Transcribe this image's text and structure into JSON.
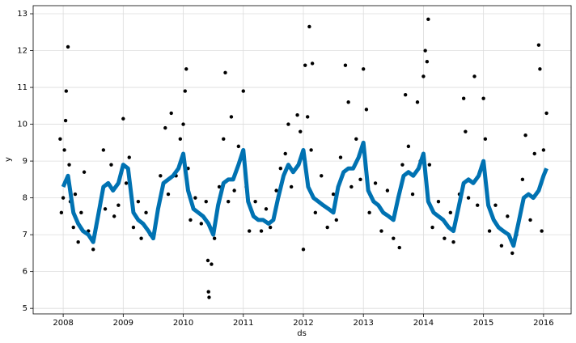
{
  "chart_data": {
    "type": "line",
    "x_label": "ds",
    "y_label": "y",
    "xlim": [
      2007.5,
      2016.46
    ],
    "ylim": [
      4.85,
      13.22
    ],
    "xticks": [
      2008,
      2009,
      2010,
      2011,
      2012,
      2013,
      2014,
      2015,
      2016
    ],
    "yticks": [
      5,
      6,
      7,
      8,
      9,
      10,
      11,
      12,
      13
    ],
    "grid": true,
    "series": [
      {
        "type": "scatter",
        "color": "#000000",
        "x": [
          2007.95,
          2007.97,
          2008.0,
          2008.02,
          2008.04,
          2008.05,
          2008.08,
          2008.1,
          2008.12,
          2008.17,
          2008.2,
          2008.25,
          2008.3,
          2008.35,
          2008.42,
          2008.5,
          2008.55,
          2008.62,
          2008.67,
          2008.7,
          2008.8,
          2008.85,
          2008.92,
          2009.0,
          2009.05,
          2009.1,
          2009.17,
          2009.25,
          2009.3,
          2009.38,
          2009.45,
          2009.55,
          2009.62,
          2009.7,
          2009.75,
          2009.8,
          2009.88,
          2009.95,
          2010.0,
          2010.03,
          2010.05,
          2010.08,
          2010.12,
          2010.2,
          2010.3,
          2010.38,
          2010.41,
          2010.42,
          2010.43,
          2010.47,
          2010.52,
          2010.6,
          2010.67,
          2010.7,
          2010.75,
          2010.8,
          2010.85,
          2010.92,
          2011.0,
          2011.05,
          2011.1,
          2011.2,
          2011.3,
          2011.38,
          2011.45,
          2011.55,
          2011.62,
          2011.7,
          2011.75,
          2011.8,
          2011.9,
          2011.95,
          2012.0,
          2012.03,
          2012.07,
          2012.1,
          2012.13,
          2012.15,
          2012.2,
          2012.3,
          2012.4,
          2012.5,
          2012.55,
          2012.62,
          2012.7,
          2012.75,
          2012.8,
          2012.88,
          2012.95,
          2013.0,
          2013.05,
          2013.1,
          2013.2,
          2013.3,
          2013.4,
          2013.5,
          2013.6,
          2013.65,
          2013.7,
          2013.75,
          2013.82,
          2013.9,
          2013.95,
          2014.0,
          2014.03,
          2014.06,
          2014.08,
          2014.1,
          2014.15,
          2014.25,
          2014.35,
          2014.45,
          2014.5,
          2014.6,
          2014.67,
          2014.7,
          2014.75,
          2014.85,
          2014.9,
          2015.0,
          2015.03,
          2015.1,
          2015.2,
          2015.3,
          2015.4,
          2015.48,
          2015.55,
          2015.65,
          2015.7,
          2015.78,
          2015.85,
          2015.92,
          2015.94,
          2015.97,
          2016.0,
          2016.05
        ],
        "values": [
          9.6,
          7.6,
          8.0,
          9.3,
          10.1,
          10.9,
          12.1,
          8.9,
          7.9,
          7.2,
          8.1,
          6.8,
          7.6,
          8.7,
          7.1,
          6.6,
          7.2,
          7.9,
          9.3,
          7.7,
          8.9,
          7.5,
          7.8,
          10.15,
          8.4,
          9.1,
          7.2,
          7.9,
          6.9,
          7.6,
          7.0,
          7.4,
          8.6,
          9.9,
          8.1,
          10.3,
          8.6,
          9.6,
          10.0,
          10.9,
          11.5,
          8.8,
          7.4,
          8.0,
          7.3,
          7.9,
          6.3,
          5.45,
          5.3,
          6.2,
          6.9,
          8.3,
          9.6,
          11.4,
          7.9,
          10.2,
          8.2,
          9.4,
          10.9,
          8.3,
          7.1,
          7.9,
          7.1,
          7.7,
          7.2,
          8.2,
          8.8,
          9.2,
          10.0,
          8.3,
          10.25,
          9.8,
          6.6,
          11.6,
          10.2,
          12.65,
          9.3,
          11.65,
          7.6,
          8.6,
          7.2,
          8.1,
          7.4,
          9.1,
          11.6,
          10.6,
          8.3,
          9.6,
          8.5,
          11.5,
          10.4,
          7.6,
          8.4,
          7.1,
          8.2,
          6.9,
          6.65,
          8.9,
          10.8,
          9.4,
          8.1,
          10.6,
          9.0,
          11.3,
          12.0,
          11.7,
          12.85,
          8.9,
          7.2,
          7.9,
          6.9,
          7.6,
          6.8,
          8.1,
          10.7,
          9.8,
          8.0,
          11.3,
          7.8,
          10.7,
          9.6,
          7.1,
          7.8,
          6.7,
          7.5,
          6.5,
          7.0,
          8.5,
          9.7,
          7.4,
          9.2,
          12.15,
          11.5,
          7.1,
          9.3,
          10.3
        ]
      },
      {
        "type": "line",
        "color": "#0072b2",
        "x": [
          2008.0,
          2008.08,
          2008.17,
          2008.25,
          2008.33,
          2008.42,
          2008.5,
          2008.58,
          2008.67,
          2008.75,
          2008.83,
          2008.92,
          2009.0,
          2009.08,
          2009.17,
          2009.25,
          2009.33,
          2009.42,
          2009.5,
          2009.58,
          2009.67,
          2009.75,
          2009.83,
          2009.92,
          2010.0,
          2010.08,
          2010.17,
          2010.25,
          2010.33,
          2010.42,
          2010.5,
          2010.58,
          2010.67,
          2010.75,
          2010.83,
          2010.92,
          2011.0,
          2011.08,
          2011.17,
          2011.25,
          2011.33,
          2011.42,
          2011.5,
          2011.58,
          2011.67,
          2011.75,
          2011.83,
          2011.92,
          2012.0,
          2012.08,
          2012.17,
          2012.25,
          2012.33,
          2012.42,
          2012.5,
          2012.58,
          2012.67,
          2012.75,
          2012.83,
          2012.92,
          2013.0,
          2013.08,
          2013.17,
          2013.25,
          2013.33,
          2013.42,
          2013.5,
          2013.58,
          2013.67,
          2013.75,
          2013.83,
          2013.92,
          2014.0,
          2014.08,
          2014.17,
          2014.25,
          2014.33,
          2014.42,
          2014.5,
          2014.58,
          2014.67,
          2014.75,
          2014.83,
          2014.92,
          2015.0,
          2015.08,
          2015.17,
          2015.25,
          2015.33,
          2015.42,
          2015.5,
          2015.58,
          2015.67,
          2015.75,
          2015.83,
          2015.92,
          2016.0,
          2016.05
        ],
        "values": [
          8.3,
          8.6,
          7.6,
          7.3,
          7.1,
          7.0,
          6.8,
          7.5,
          8.3,
          8.4,
          8.2,
          8.4,
          8.9,
          8.8,
          7.6,
          7.4,
          7.3,
          7.1,
          6.9,
          7.7,
          8.4,
          8.5,
          8.6,
          8.8,
          9.2,
          8.2,
          7.7,
          7.6,
          7.5,
          7.3,
          7.0,
          7.8,
          8.4,
          8.5,
          8.5,
          8.9,
          9.3,
          7.9,
          7.5,
          7.4,
          7.4,
          7.3,
          7.4,
          8.0,
          8.6,
          8.9,
          8.7,
          8.9,
          9.3,
          8.3,
          8.0,
          7.9,
          7.8,
          7.7,
          7.6,
          8.3,
          8.7,
          8.8,
          8.8,
          9.1,
          9.5,
          8.2,
          7.9,
          7.8,
          7.6,
          7.5,
          7.4,
          8.0,
          8.6,
          8.7,
          8.6,
          8.8,
          9.2,
          7.9,
          7.6,
          7.5,
          7.4,
          7.2,
          7.1,
          7.7,
          8.4,
          8.5,
          8.4,
          8.6,
          9.0,
          7.8,
          7.4,
          7.2,
          7.1,
          7.0,
          6.7,
          7.3,
          8.0,
          8.1,
          8.0,
          8.2,
          8.6,
          8.8
        ]
      }
    ]
  }
}
